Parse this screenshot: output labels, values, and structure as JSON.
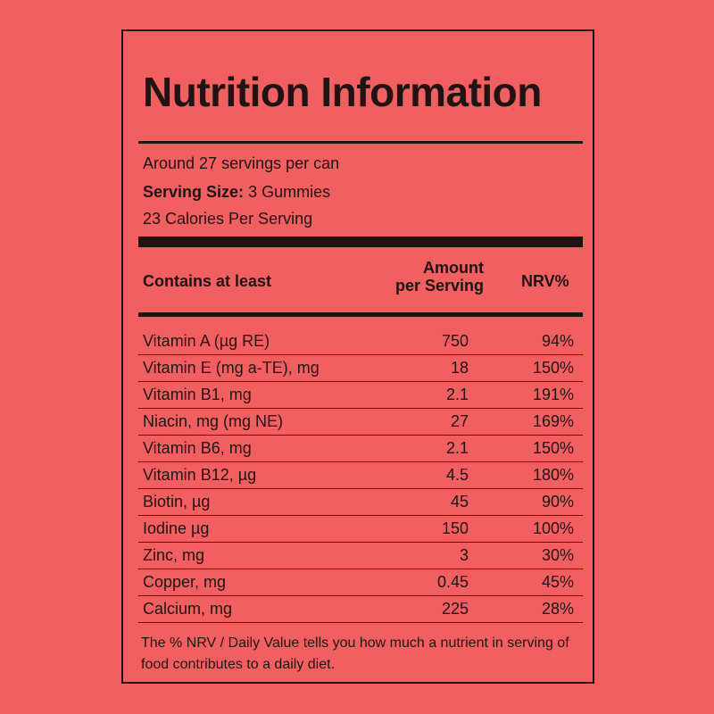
{
  "title": "Nutrition Information",
  "servings_per_can": "Around 27 servings per can",
  "serving_size_label": "Serving Size:",
  "serving_size_value": "3 Gummies",
  "calories": "23 Calories Per Serving",
  "table": {
    "col_contains": "Contains at least",
    "col_amount_line1": "Amount",
    "col_amount_line2": "per Serving",
    "col_nrv": "NRV%",
    "rows": [
      {
        "name": "Vitamin A  (µg RE)",
        "amount": "750",
        "nrv": "94%"
      },
      {
        "name": "Vitamin E (mg a-TE), mg",
        "amount": "18",
        "nrv": "150%"
      },
      {
        "name": "Vitamin B1, mg",
        "amount": "2.1",
        "nrv": "191%"
      },
      {
        "name": "Niacin, mg (mg NE)",
        "amount": "27",
        "nrv": "169%"
      },
      {
        "name": "Vitamin B6, mg",
        "amount": "2.1",
        "nrv": "150%"
      },
      {
        "name": "Vitamin B12, µg",
        "amount": "4.5",
        "nrv": "180%"
      },
      {
        "name": "Biotin, µg",
        "amount": "45",
        "nrv": "90%"
      },
      {
        "name": "Iodine µg",
        "amount": "150",
        "nrv": "100%"
      },
      {
        "name": "Zinc, mg",
        "amount": "3",
        "nrv": "30%"
      },
      {
        "name": "Copper, mg",
        "amount": "0.45",
        "nrv": "45%"
      },
      {
        "name": "Calcium, mg",
        "amount": "225",
        "nrv": "28%"
      }
    ]
  },
  "footnote": "The % NRV / Daily Value tells you how much a nutrient in  serving of food contributes to a daily diet.",
  "colors": {
    "background": "#f25f61",
    "ink": "#1f1414"
  }
}
